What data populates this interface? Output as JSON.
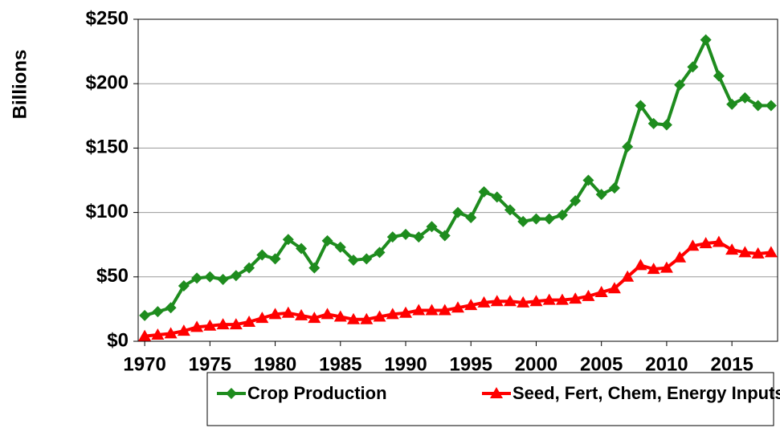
{
  "chart_data": {
    "type": "line",
    "y_label": "Billions",
    "x": [
      1970,
      1971,
      1972,
      1973,
      1974,
      1975,
      1976,
      1977,
      1978,
      1979,
      1980,
      1981,
      1982,
      1983,
      1984,
      1985,
      1986,
      1987,
      1988,
      1989,
      1990,
      1991,
      1992,
      1993,
      1994,
      1995,
      1996,
      1997,
      1998,
      1999,
      2000,
      2001,
      2002,
      2003,
      2004,
      2005,
      2006,
      2007,
      2008,
      2009,
      2010,
      2011,
      2012,
      2013,
      2014,
      2015,
      2016,
      2017,
      2018
    ],
    "series": [
      {
        "name": "Crop Production",
        "color": "#1e8c1e",
        "marker": "diamond",
        "values": [
          20,
          23,
          26,
          43,
          49,
          50,
          48,
          51,
          57,
          67,
          64,
          79,
          72,
          57,
          78,
          73,
          63,
          64,
          69,
          81,
          83,
          81,
          89,
          82,
          100,
          96,
          116,
          112,
          102,
          93,
          95,
          95,
          98,
          109,
          125,
          114,
          119,
          151,
          183,
          169,
          168,
          199,
          213,
          234,
          206,
          184,
          189,
          183,
          183
        ]
      },
      {
        "name": "Seed, Fert, Chem, Energy Inputs",
        "color": "#ff0000",
        "marker": "triangle",
        "values": [
          4,
          5,
          6,
          8,
          11,
          12,
          13,
          13,
          15,
          18,
          21,
          22,
          20,
          18,
          21,
          19,
          17,
          17,
          19,
          21,
          22,
          24,
          24,
          24,
          26,
          28,
          30,
          31,
          31,
          30,
          31,
          32,
          32,
          33,
          35,
          38,
          41,
          50,
          59,
          56,
          57,
          65,
          74,
          76,
          77,
          71,
          69,
          68,
          69
        ]
      }
    ],
    "xlim": [
      1969.5,
      2018.5
    ],
    "xticks": [
      1970,
      1975,
      1980,
      1985,
      1990,
      1995,
      2000,
      2005,
      2010,
      2015
    ],
    "ylim": [
      0,
      250
    ],
    "yticks": [
      {
        "value": 0,
        "label": "$0"
      },
      {
        "value": 50,
        "label": "$50"
      },
      {
        "value": 100,
        "label": "$100"
      },
      {
        "value": 150,
        "label": "$150"
      },
      {
        "value": 200,
        "label": "$200"
      },
      {
        "value": 250,
        "label": "$250"
      }
    ],
    "grid": true,
    "legend": "bottom"
  }
}
